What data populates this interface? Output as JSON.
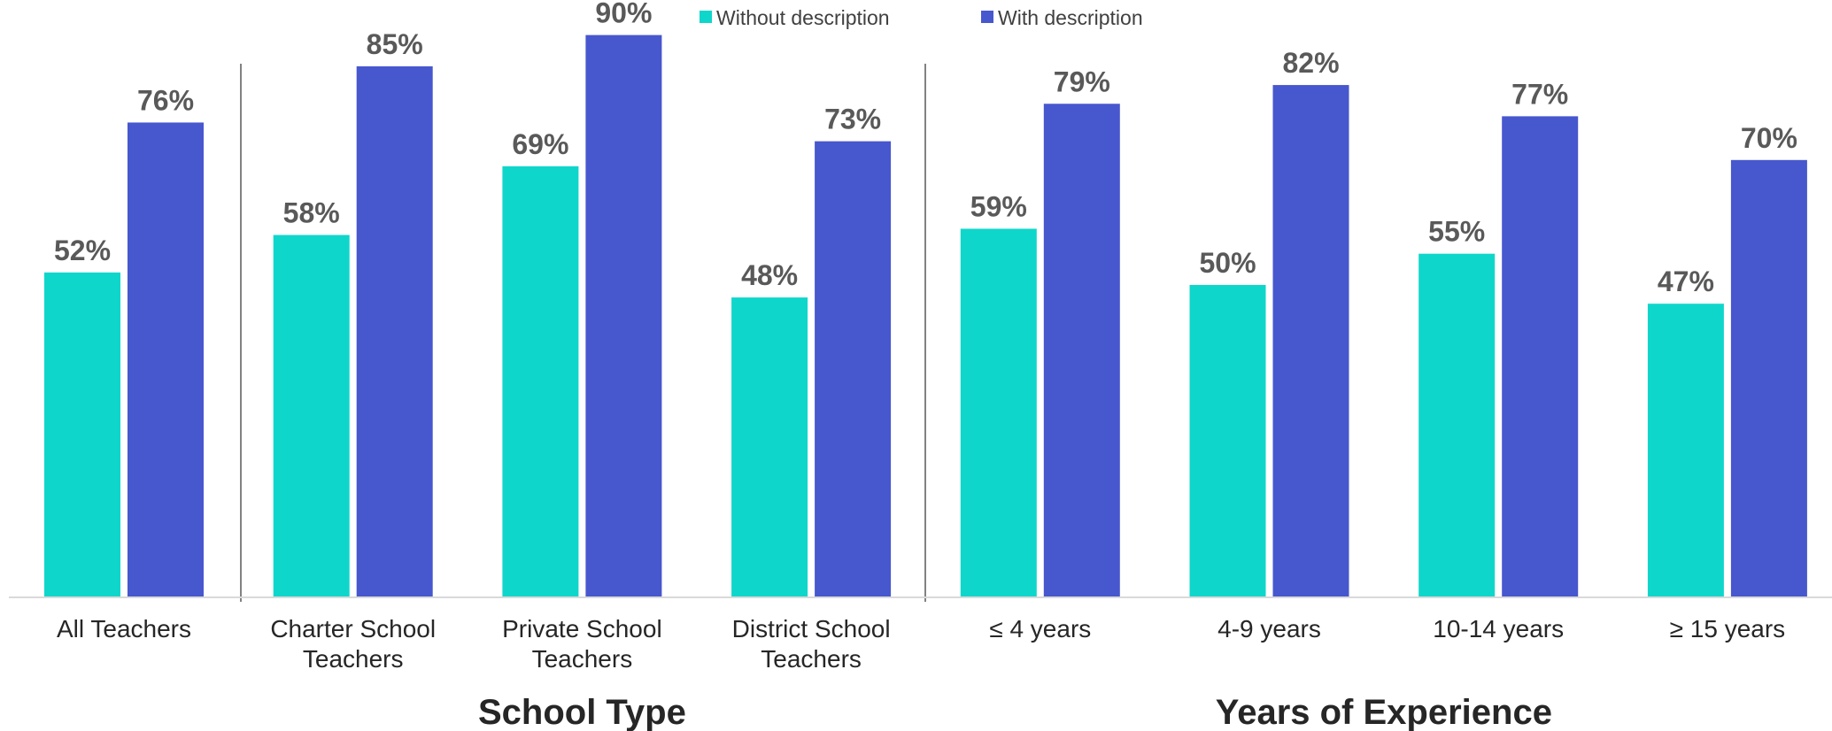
{
  "chart_data": {
    "type": "bar",
    "title": "",
    "xlabel": "",
    "ylabel": "",
    "ylim": [
      0,
      100
    ],
    "legend_position": "top-center",
    "grid": false,
    "colors": {
      "Without description": "#0fd6cb",
      "With description": "#4757ce"
    },
    "categories": [
      "All Teachers",
      "Charter School Teachers",
      "Private School Teachers",
      "District School Teachers",
      "≤ 4 years",
      "4-9 years",
      "10-14 years",
      "≥ 15 years"
    ],
    "category_lines": [
      [
        "All Teachers"
      ],
      [
        "Charter School",
        "Teachers"
      ],
      [
        "Private School",
        "Teachers"
      ],
      [
        "District School",
        "Teachers"
      ],
      [
        "≤ 4 years"
      ],
      [
        "4-9 years"
      ],
      [
        "10-14 years"
      ],
      [
        "≥ 15 years"
      ]
    ],
    "series": [
      {
        "name": "Without description",
        "values": [
          52,
          58,
          69,
          48,
          59,
          50,
          55,
          47
        ],
        "labels": [
          "52%",
          "58%",
          "69%",
          "48%",
          "59%",
          "50%",
          "55%",
          "47%"
        ]
      },
      {
        "name": "With description",
        "values": [
          76,
          85,
          90,
          73,
          79,
          82,
          77,
          70
        ],
        "labels": [
          "76%",
          "85%",
          "90%",
          "73%",
          "79%",
          "82%",
          "77%",
          "70%"
        ]
      }
    ],
    "groups": [
      {
        "label": "School Type",
        "categories": [
          "Charter School Teachers",
          "Private School Teachers",
          "District School Teachers"
        ]
      },
      {
        "label": "Years of Experience",
        "categories": [
          "≤ 4 years",
          "4-9 years",
          "10-14 years",
          "≥ 15 years"
        ]
      }
    ]
  }
}
